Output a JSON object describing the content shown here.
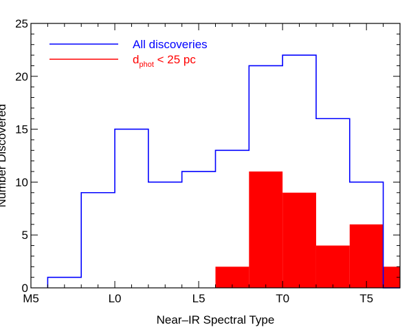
{
  "chart_data": {
    "type": "bar",
    "xlabel": "Near–IR Spectral Type",
    "ylabel": "Number Discovered",
    "xlim": [
      0,
      22
    ],
    "ylim": [
      0,
      25
    ],
    "x_ticks": [
      {
        "value": 0,
        "label": "M5"
      },
      {
        "value": 5,
        "label": "L0"
      },
      {
        "value": 10,
        "label": "L5"
      },
      {
        "value": 15,
        "label": "T0"
      },
      {
        "value": 20,
        "label": "T5"
      }
    ],
    "y_ticks": [
      0,
      5,
      10,
      15,
      20,
      25
    ],
    "bin_edges": [
      1,
      3,
      5,
      7,
      9,
      11,
      13,
      15,
      17,
      19,
      21,
      23
    ],
    "series": [
      {
        "name": "All discoveries",
        "style": "step",
        "color": "#0000ff",
        "values": [
          1,
          9,
          15,
          10,
          11,
          13,
          21,
          22,
          16,
          10,
          0
        ]
      },
      {
        "name_main": "d",
        "name_sub": "phot",
        "name_rest": " < 25 pc",
        "style": "filled",
        "color": "#ff0000",
        "values": [
          0,
          0,
          0,
          0,
          0,
          2,
          11,
          9,
          4,
          6,
          2
        ]
      }
    ],
    "legend_position": "top-left"
  }
}
